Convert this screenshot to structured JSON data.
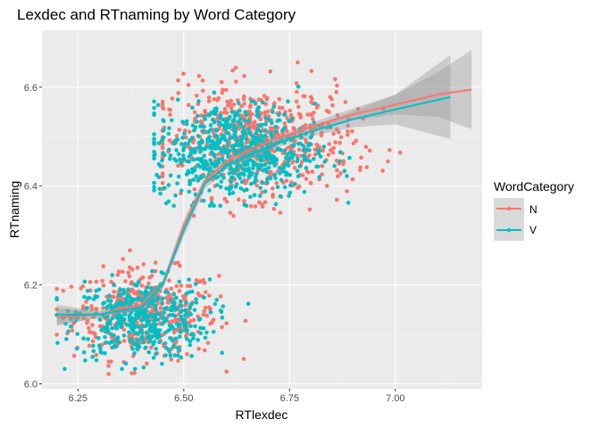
{
  "chart_data": {
    "type": "scatter",
    "title": "Lexdec and RTnaming by Word Category",
    "xlabel": "RTlexdec",
    "ylabel": "RTnaming",
    "xlim": [
      6.165,
      7.205
    ],
    "ylim": [
      5.99,
      6.715
    ],
    "x_ticks": [
      "6.25",
      "6.50",
      "6.75",
      "7.00"
    ],
    "x_tick_values": [
      6.25,
      6.5,
      6.75,
      7.0
    ],
    "y_ticks": [
      "6.0",
      "6.2",
      "6.4",
      "6.6"
    ],
    "y_tick_values": [
      6.0,
      6.2,
      6.4,
      6.6
    ],
    "grid": true,
    "legend": {
      "title": "WordCategory",
      "position": "right",
      "entries": [
        "N",
        "V"
      ]
    },
    "colors": {
      "N": "#f8766d",
      "V": "#00bfc4",
      "panel": "#ebebeb",
      "grid": "#ffffff",
      "ribbon": "#999999"
    },
    "clusters": [
      {
        "series": "N",
        "n": 420,
        "cx": 6.41,
        "cy": 6.14,
        "sx": 0.085,
        "sy": 0.045,
        "xmin": 6.2,
        "xmax": 6.82,
        "ymin": 6.02,
        "ymax": 6.27
      },
      {
        "series": "V",
        "n": 420,
        "cx": 6.4,
        "cy": 6.13,
        "sx": 0.08,
        "sy": 0.04,
        "xmin": 6.2,
        "xmax": 6.78,
        "ymin": 6.03,
        "ymax": 6.26
      },
      {
        "series": "N",
        "n": 650,
        "cx": 6.67,
        "cy": 6.49,
        "sx": 0.115,
        "sy": 0.055,
        "xmin": 6.45,
        "xmax": 7.18,
        "ymin": 6.34,
        "ymax": 6.7
      },
      {
        "series": "V",
        "n": 620,
        "cx": 6.62,
        "cy": 6.47,
        "sx": 0.095,
        "sy": 0.048,
        "xmin": 6.43,
        "xmax": 7.1,
        "ymin": 6.36,
        "ymax": 6.68
      }
    ],
    "series": [
      {
        "name": "N",
        "smooth_x": [
          6.2,
          6.3,
          6.4,
          6.45,
          6.5,
          6.55,
          6.6,
          6.7,
          6.8,
          6.9,
          7.0,
          7.1,
          7.18
        ],
        "smooth_y": [
          6.135,
          6.14,
          6.16,
          6.2,
          6.32,
          6.41,
          6.45,
          6.49,
          6.52,
          6.545,
          6.565,
          6.585,
          6.595
        ],
        "band": [
          0.018,
          0.006,
          0.006,
          0.008,
          0.012,
          0.01,
          0.006,
          0.006,
          0.008,
          0.012,
          0.02,
          0.045,
          0.08
        ]
      },
      {
        "name": "V",
        "smooth_x": [
          6.2,
          6.3,
          6.4,
          6.45,
          6.5,
          6.55,
          6.6,
          6.7,
          6.8,
          6.9,
          7.0,
          7.13
        ],
        "smooth_y": [
          6.14,
          6.14,
          6.155,
          6.2,
          6.31,
          6.405,
          6.44,
          6.48,
          6.51,
          6.535,
          6.555,
          6.58
        ],
        "band": [
          0.02,
          0.007,
          0.007,
          0.009,
          0.013,
          0.011,
          0.007,
          0.007,
          0.01,
          0.016,
          0.03,
          0.085
        ]
      }
    ]
  }
}
